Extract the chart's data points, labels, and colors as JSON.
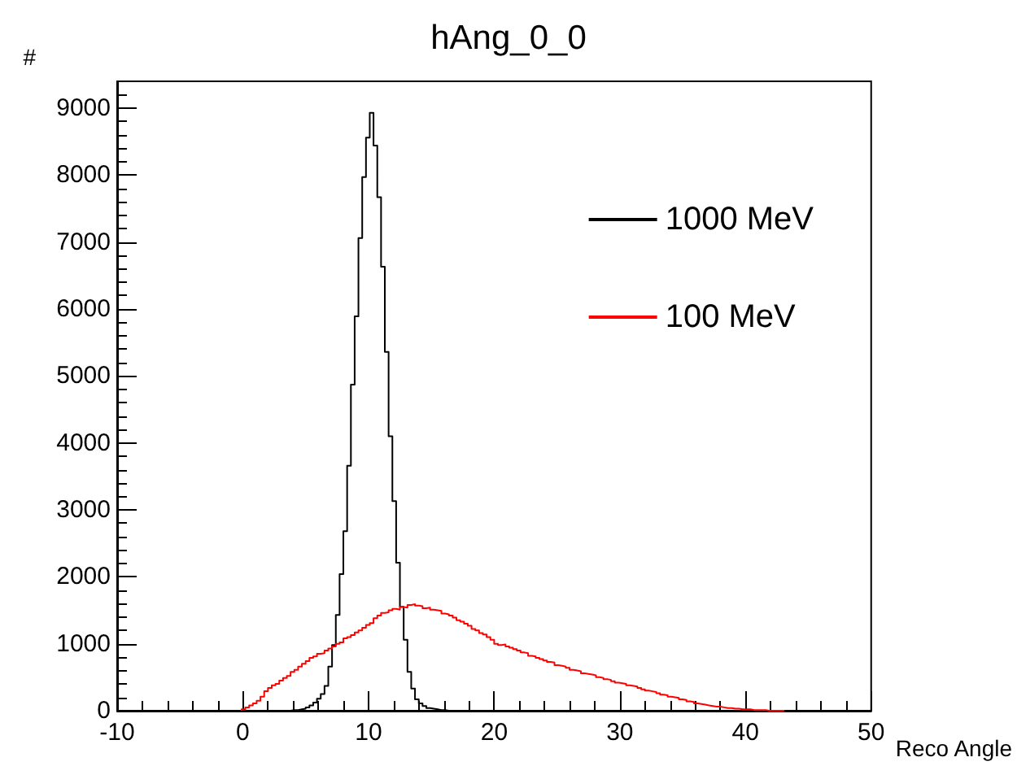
{
  "chart_data": {
    "type": "histogram",
    "title": "hAng_0_0",
    "xlabel": "Reco Angle",
    "ylabel": "#",
    "xlim": [
      -10,
      50
    ],
    "xticks": [
      -10,
      0,
      10,
      20,
      30,
      40,
      50
    ],
    "ylim": [
      0,
      9400
    ],
    "yticks": [
      0,
      1000,
      2000,
      3000,
      4000,
      5000,
      6000,
      7000,
      8000,
      9000
    ],
    "legend": "top right",
    "bins": [
      -0.1,
      0.2,
      0.5,
      0.8,
      1.1,
      1.4,
      1.7,
      2,
      2.3,
      2.6,
      2.9,
      3.2,
      3.5,
      3.8,
      4.1,
      4.4,
      4.7,
      5,
      5.3,
      5.6,
      5.9,
      6.2,
      6.5,
      6.8,
      7.1,
      7.4,
      7.7,
      8,
      8.3,
      8.6,
      8.9,
      9.2,
      9.5,
      9.8,
      10.1,
      10.4,
      10.7,
      11,
      11.3,
      11.6,
      11.9,
      12.2,
      12.5,
      12.8,
      13.1,
      13.4,
      13.7,
      14,
      14.3,
      14.6,
      14.9,
      15.2,
      15.5,
      15.8,
      16.1,
      16.4,
      16.7,
      17,
      17.3,
      17.6,
      17.9,
      18.2,
      18.5,
      18.8,
      19.1,
      19.4,
      19.7,
      20,
      20.3,
      20.6,
      20.9,
      21.2,
      21.5,
      21.8,
      22.1,
      22.4,
      22.7,
      23,
      23.3,
      23.6,
      23.9,
      24.2,
      24.5,
      24.8,
      25.1,
      25.4,
      25.7,
      26,
      26.3,
      26.6,
      26.9,
      27.2,
      27.5,
      27.8,
      28.1,
      28.4,
      28.7,
      29,
      29.3,
      29.6,
      29.9,
      30.2,
      30.5,
      30.8,
      31.1,
      31.4,
      31.7,
      32,
      32.3,
      32.6,
      32.9,
      33.2,
      33.5,
      33.8,
      34.1,
      34.4,
      34.7,
      35,
      35.3,
      35.6,
      35.9,
      36.2,
      36.5,
      36.8,
      37.1,
      37.4,
      37.7,
      38,
      38.3,
      38.6,
      38.9,
      39.2,
      39.5,
      39.8,
      40.1,
      40.4,
      40.7,
      41,
      41.3,
      41.6,
      41.9,
      42.2,
      42.5,
      42.8,
      43.1
    ],
    "series": [
      {
        "name": "1000 MeV",
        "color": "#000000",
        "values": [
          0,
          0,
          0,
          0,
          0,
          0,
          0,
          0,
          0,
          0,
          0,
          0,
          0,
          10,
          10,
          20,
          30,
          50,
          80,
          120,
          180,
          250,
          370,
          660,
          980,
          1430,
          2040,
          2680,
          3660,
          4870,
          5890,
          7060,
          7970,
          8560,
          8930,
          8440,
          7670,
          6630,
          5360,
          4100,
          3130,
          2210,
          1550,
          1060,
          580,
          330,
          170,
          110,
          70,
          40,
          30,
          20,
          10,
          10,
          0,
          0,
          0,
          0,
          0,
          0,
          0,
          0,
          0,
          0,
          0,
          0,
          0,
          0,
          0,
          0,
          0,
          0,
          0,
          0,
          0,
          0,
          0,
          0,
          0,
          0,
          0,
          0,
          0,
          0,
          0,
          0,
          0,
          0,
          0,
          0,
          0,
          0,
          0,
          0,
          0,
          0,
          0,
          0,
          0,
          0,
          0,
          0,
          0,
          0,
          0,
          0,
          0,
          0,
          0,
          0,
          0,
          0,
          0,
          0,
          0,
          0,
          0,
          0,
          0,
          0,
          0,
          0,
          0,
          0,
          0,
          0,
          0,
          0,
          0,
          0,
          0,
          0,
          0,
          0,
          0,
          0,
          0,
          0,
          0,
          0,
          0,
          0,
          0,
          0
        ]
      },
      {
        "name": "100 MeV",
        "color": "#ff0000",
        "values": [
          20,
          50,
          80,
          110,
          150,
          210,
          290,
          340,
          380,
          400,
          450,
          490,
          520,
          580,
          610,
          660,
          700,
          740,
          790,
          810,
          850,
          860,
          900,
          930,
          960,
          1000,
          1020,
          1080,
          1100,
          1130,
          1170,
          1200,
          1240,
          1280,
          1310,
          1380,
          1420,
          1460,
          1470,
          1500,
          1520,
          1510,
          1550,
          1540,
          1580,
          1590,
          1570,
          1560,
          1530,
          1540,
          1510,
          1500,
          1490,
          1450,
          1440,
          1420,
          1390,
          1350,
          1330,
          1300,
          1270,
          1220,
          1200,
          1160,
          1140,
          1100,
          1060,
          1000,
          980,
          990,
          960,
          940,
          920,
          900,
          870,
          860,
          820,
          810,
          790,
          770,
          750,
          730,
          720,
          680,
          670,
          660,
          640,
          610,
          600,
          590,
          560,
          550,
          540,
          530,
          500,
          490,
          470,
          460,
          440,
          420,
          410,
          400,
          380,
          370,
          360,
          340,
          320,
          300,
          290,
          280,
          260,
          240,
          230,
          210,
          200,
          190,
          170,
          160,
          140,
          130,
          110,
          100,
          90,
          80,
          70,
          60,
          60,
          50,
          40,
          40,
          30,
          30,
          20,
          20,
          20,
          10,
          10,
          10,
          10,
          0,
          0,
          0,
          0,
          0
        ]
      }
    ]
  }
}
